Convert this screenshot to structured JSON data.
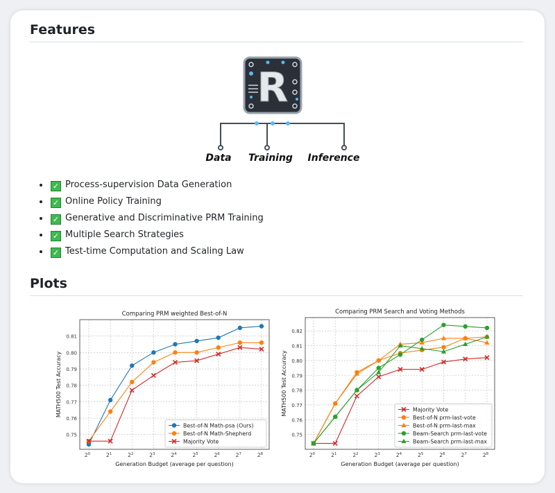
{
  "features": {
    "heading": "Features",
    "logo_labels": [
      "Data",
      "Training",
      "Inference"
    ],
    "logo_letter": "R",
    "items": [
      "Process-supervision Data Generation",
      "Online Policy Training",
      "Generative and Discriminative PRM Training",
      "Multiple Search Strategies",
      "Test-time Computation and Scaling Law"
    ],
    "check_icon": "check-mark-button-icon"
  },
  "plots": {
    "heading": "Plots"
  },
  "chart_data": [
    {
      "type": "line",
      "title": "Comparing PRM weighted Best-of-N",
      "xlabel": "Generation Budget (average per question)",
      "ylabel": "MATH500 Test Accuracy",
      "categories": [
        "2^0",
        "2^1",
        "2^2",
        "2^3",
        "2^4",
        "2^5",
        "2^6",
        "2^7",
        "2^8"
      ],
      "yticks": [
        0.75,
        0.76,
        0.77,
        0.78,
        0.79,
        0.8,
        0.81
      ],
      "ylim": [
        0.741,
        0.82
      ],
      "grid": true,
      "legend": "bottom-right",
      "series": [
        {
          "name": "Best-of-N Math-psa (Ours)",
          "color": "#1f77b4",
          "marker": "circle",
          "values": [
            0.744,
            0.771,
            0.792,
            0.8,
            0.805,
            0.807,
            0.809,
            0.815,
            0.816
          ]
        },
        {
          "name": "Best-of-N Math-Shepherd",
          "color": "#ff7f0e",
          "marker": "circle",
          "values": [
            0.746,
            0.764,
            0.782,
            0.794,
            0.8,
            0.8,
            0.803,
            0.806,
            0.806
          ]
        },
        {
          "name": "Majority Vote",
          "color": "#d62728",
          "marker": "x",
          "values": [
            0.746,
            0.746,
            0.777,
            0.786,
            0.794,
            0.795,
            0.799,
            0.803,
            0.802
          ]
        }
      ]
    },
    {
      "type": "line",
      "title": "Comparing PRM Search and Voting Methods",
      "xlabel": "Generation Budget (average per question)",
      "ylabel": "MATH500 Test Accuracy",
      "categories": [
        "2^0",
        "2^1",
        "2^2",
        "2^3",
        "2^4",
        "2^5",
        "2^6",
        "2^7",
        "2^8"
      ],
      "yticks": [
        0.75,
        0.76,
        0.77,
        0.78,
        0.79,
        0.8,
        0.81,
        0.82
      ],
      "ylim": [
        0.74,
        0.829
      ],
      "grid": true,
      "legend": "bottom-right",
      "series": [
        {
          "name": "Majority Vote",
          "color": "#d62728",
          "marker": "x",
          "values": [
            0.744,
            0.744,
            0.776,
            0.789,
            0.794,
            0.794,
            0.799,
            0.801,
            0.802
          ]
        },
        {
          "name": "Best-of-N prm-last-vote",
          "color": "#ff7f0e",
          "marker": "circle",
          "values": [
            0.744,
            0.771,
            0.792,
            0.8,
            0.805,
            0.807,
            0.809,
            0.815,
            0.816
          ]
        },
        {
          "name": "Best-of-N prm-last-max",
          "color": "#ff7f0e",
          "marker": "triangle",
          "values": [
            0.744,
            0.771,
            0.791,
            0.8,
            0.811,
            0.812,
            0.815,
            0.815,
            0.812
          ]
        },
        {
          "name": "Beam-Search prm-last-vote",
          "color": "#2ca02c",
          "marker": "circle",
          "values": [
            0.744,
            0.762,
            0.78,
            0.795,
            0.804,
            0.814,
            0.824,
            0.823,
            0.822
          ]
        },
        {
          "name": "Beam-Search prm-last-max",
          "color": "#2ca02c",
          "marker": "triangle",
          "values": [
            0.744,
            0.762,
            0.78,
            0.792,
            0.81,
            0.808,
            0.806,
            0.811,
            0.816
          ]
        }
      ]
    }
  ]
}
